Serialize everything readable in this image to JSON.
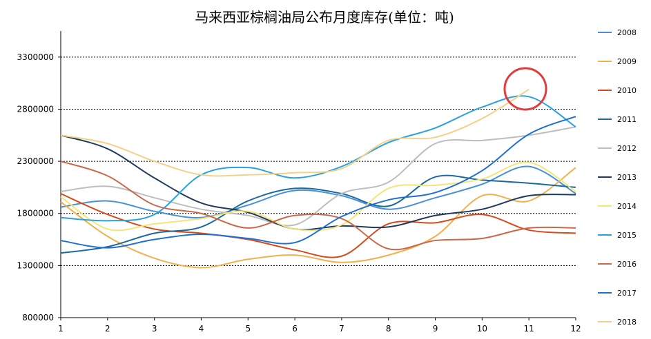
{
  "chart_data": {
    "type": "line",
    "title": "马来西亚棕榈油局公布月度库存(单位：吨)",
    "xlabel": "",
    "ylabel": "",
    "categories": [
      1,
      2,
      3,
      4,
      5,
      6,
      7,
      8,
      9,
      10,
      11,
      12
    ],
    "x_ticks": [
      "1",
      "2",
      "3",
      "4",
      "5",
      "6",
      "7",
      "8",
      "9",
      "10",
      "11",
      "12"
    ],
    "y_ticks": [
      "800000",
      "1300000",
      "1800000",
      "2300000",
      "2800000",
      "3300000"
    ],
    "ylim": [
      800000,
      3550000
    ],
    "grid": "horizontal dashed",
    "legend_position": "right",
    "annotation": "red circle highlighting 2018 month 11",
    "series": [
      {
        "name": "2008",
        "color": "#4a90d9",
        "values": [
          1860000,
          1920000,
          1820000,
          1760000,
          1880000,
          2020000,
          1970000,
          1840000,
          1950000,
          2080000,
          2250000,
          1990000
        ]
      },
      {
        "name": "2009",
        "color": "#f2b04a",
        "values": [
          1910000,
          1580000,
          1370000,
          1280000,
          1360000,
          1400000,
          1330000,
          1400000,
          1580000,
          1970000,
          1920000,
          2240000
        ]
      },
      {
        "name": "2010",
        "color": "#d64a1a",
        "values": [
          1990000,
          1790000,
          1650000,
          1610000,
          1550000,
          1450000,
          1390000,
          1700000,
          1710000,
          1790000,
          1640000,
          1610000
        ]
      },
      {
        "name": "2011",
        "color": "#1a6a9e",
        "values": [
          1420000,
          1480000,
          1610000,
          1670000,
          1920000,
          2040000,
          1990000,
          1870000,
          2150000,
          2120000,
          2090000,
          2050000
        ]
      },
      {
        "name": "2012",
        "color": "#bdbdbd",
        "values": [
          2010000,
          2060000,
          1950000,
          1840000,
          1780000,
          1690000,
          1990000,
          2100000,
          2470000,
          2500000,
          2550000,
          2630000
        ]
      },
      {
        "name": "2013",
        "color": "#1f3a5f",
        "values": [
          2550000,
          2420000,
          2140000,
          1900000,
          1810000,
          1650000,
          1680000,
          1670000,
          1780000,
          1840000,
          1970000,
          1980000
        ]
      },
      {
        "name": "2014",
        "color": "#f5e47a",
        "values": [
          1960000,
          1650000,
          1700000,
          1750000,
          1820000,
          1650000,
          1690000,
          2040000,
          2070000,
          2130000,
          2290000,
          2010000
        ]
      },
      {
        "name": "2015",
        "color": "#2aa0e0",
        "values": [
          1760000,
          1730000,
          1790000,
          2170000,
          2240000,
          2140000,
          2250000,
          2480000,
          2620000,
          2820000,
          2920000,
          2630000
        ]
      },
      {
        "name": "2016",
        "color": "#c8694a",
        "values": [
          2300000,
          2160000,
          1880000,
          1800000,
          1660000,
          1780000,
          1750000,
          1460000,
          1540000,
          1560000,
          1660000,
          1660000
        ]
      },
      {
        "name": "2017",
        "color": "#1f6fd1",
        "values": [
          1540000,
          1470000,
          1550000,
          1600000,
          1560000,
          1520000,
          1770000,
          1930000,
          2000000,
          2210000,
          2560000,
          2730000
        ]
      },
      {
        "name": "2018",
        "color": "#f2d28a",
        "values": [
          2550000,
          2470000,
          2300000,
          2170000,
          2170000,
          2190000,
          2230000,
          2500000,
          2530000,
          2710000,
          2990000,
          null
        ]
      }
    ]
  }
}
